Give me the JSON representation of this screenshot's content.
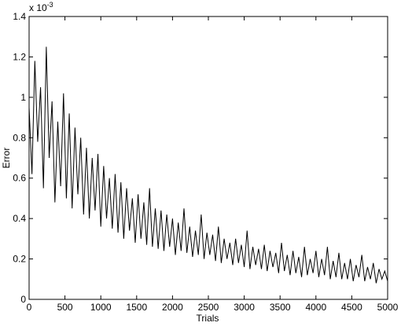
{
  "chart_data": {
    "type": "line",
    "xlabel": "Trials",
    "ylabel": "Error",
    "y_multiplier": "x 10",
    "y_multiplier_exponent": "-3",
    "xlim": [
      0,
      5000
    ],
    "xticks": [
      0,
      500,
      1000,
      1500,
      2000,
      2500,
      3000,
      3500,
      4000,
      4500,
      5000
    ],
    "ylim": [
      0,
      1.4
    ],
    "yticks": [
      0,
      0.2,
      0.4,
      0.6,
      0.8,
      1,
      1.2,
      1.4
    ],
    "grid": false,
    "series": [
      {
        "color": "#000000",
        "x": [
          0,
          40,
          80,
          120,
          160,
          200,
          240,
          280,
          320,
          360,
          400,
          440,
          480,
          520,
          560,
          600,
          640,
          680,
          720,
          760,
          800,
          840,
          880,
          920,
          960,
          1000,
          1040,
          1080,
          1120,
          1160,
          1200,
          1240,
          1280,
          1320,
          1360,
          1400,
          1440,
          1480,
          1520,
          1560,
          1600,
          1640,
          1680,
          1720,
          1760,
          1800,
          1840,
          1880,
          1920,
          1960,
          2000,
          2040,
          2080,
          2120,
          2160,
          2200,
          2240,
          2280,
          2320,
          2360,
          2400,
          2440,
          2480,
          2520,
          2560,
          2600,
          2640,
          2680,
          2720,
          2760,
          2800,
          2840,
          2880,
          2920,
          2960,
          3000,
          3040,
          3080,
          3120,
          3160,
          3200,
          3240,
          3280,
          3320,
          3360,
          3400,
          3440,
          3480,
          3520,
          3560,
          3600,
          3640,
          3680,
          3720,
          3760,
          3800,
          3840,
          3880,
          3920,
          3960,
          4000,
          4040,
          4080,
          4120,
          4160,
          4200,
          4240,
          4280,
          4320,
          4360,
          4400,
          4440,
          4480,
          4520,
          4560,
          4600,
          4640,
          4680,
          4720,
          4760,
          4800,
          4840,
          4880,
          4920,
          4960,
          5000
        ],
        "values": [
          0.95,
          0.62,
          1.18,
          0.78,
          1.05,
          0.55,
          1.25,
          0.7,
          0.98,
          0.48,
          0.88,
          0.56,
          1.02,
          0.5,
          0.92,
          0.45,
          0.85,
          0.52,
          0.8,
          0.42,
          0.75,
          0.4,
          0.7,
          0.44,
          0.72,
          0.36,
          0.66,
          0.4,
          0.6,
          0.35,
          0.62,
          0.33,
          0.58,
          0.3,
          0.55,
          0.34,
          0.5,
          0.28,
          0.52,
          0.3,
          0.48,
          0.27,
          0.55,
          0.26,
          0.45,
          0.25,
          0.44,
          0.24,
          0.42,
          0.26,
          0.4,
          0.22,
          0.38,
          0.24,
          0.45,
          0.23,
          0.36,
          0.21,
          0.34,
          0.22,
          0.42,
          0.2,
          0.33,
          0.22,
          0.32,
          0.19,
          0.36,
          0.18,
          0.3,
          0.2,
          0.28,
          0.17,
          0.3,
          0.18,
          0.27,
          0.16,
          0.34,
          0.15,
          0.26,
          0.17,
          0.25,
          0.15,
          0.27,
          0.14,
          0.24,
          0.16,
          0.23,
          0.13,
          0.28,
          0.14,
          0.22,
          0.12,
          0.24,
          0.13,
          0.21,
          0.11,
          0.26,
          0.12,
          0.2,
          0.13,
          0.24,
          0.11,
          0.2,
          0.12,
          0.26,
          0.1,
          0.19,
          0.11,
          0.23,
          0.1,
          0.18,
          0.1,
          0.2,
          0.09,
          0.17,
          0.11,
          0.22,
          0.09,
          0.16,
          0.1,
          0.18,
          0.08,
          0.15,
          0.1,
          0.14,
          0.09
        ]
      }
    ]
  }
}
